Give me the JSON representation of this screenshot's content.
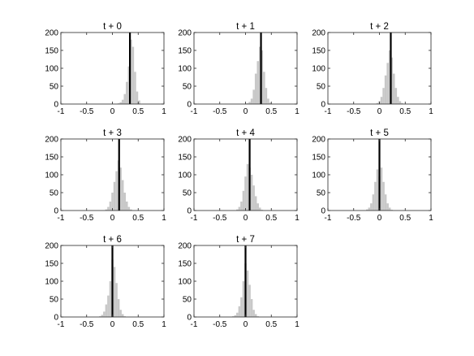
{
  "chart_data": [
    {
      "type": "bar",
      "title": "t + 0",
      "xlim": [
        -1,
        1
      ],
      "ylim": [
        0,
        200
      ],
      "x_ticks": [
        "-1",
        "-0.5",
        "0",
        "0.5",
        "1"
      ],
      "y_ticks": [
        "0",
        "50",
        "100",
        "150",
        "200"
      ],
      "bin_width": 0.04,
      "bin_centers": [
        0.12,
        0.16,
        0.2,
        0.24,
        0.28,
        0.32,
        0.36,
        0.4,
        0.44,
        0.48,
        0.52
      ],
      "counts": [
        2,
        5,
        12,
        28,
        62,
        105,
        180,
        160,
        90,
        35,
        10
      ],
      "marker_x": 0.34,
      "bar_color": "#c8c8c8",
      "marker_color": "#000000"
    },
    {
      "type": "bar",
      "title": "t + 1",
      "xlim": [
        -1,
        1
      ],
      "ylim": [
        0,
        200
      ],
      "x_ticks": [
        "-1",
        "-0.5",
        "0",
        "0.5",
        "1"
      ],
      "y_ticks": [
        "0",
        "50",
        "100",
        "150",
        "200"
      ],
      "bin_width": 0.04,
      "bin_centers": [
        0.04,
        0.08,
        0.12,
        0.16,
        0.2,
        0.24,
        0.28,
        0.32,
        0.36,
        0.4,
        0.44,
        0.48
      ],
      "counts": [
        2,
        6,
        15,
        40,
        85,
        120,
        160,
        150,
        90,
        45,
        15,
        4
      ],
      "marker_x": 0.3,
      "bar_color": "#c8c8c8",
      "marker_color": "#000000"
    },
    {
      "type": "bar",
      "title": "t + 2",
      "xlim": [
        -1,
        1
      ],
      "ylim": [
        0,
        200
      ],
      "x_ticks": [
        "-1",
        "-0.5",
        "0",
        "0.5",
        "1"
      ],
      "y_ticks": [
        "0",
        "50",
        "100",
        "150",
        "200"
      ],
      "bin_width": 0.04,
      "bin_centers": [
        -0.04,
        0.0,
        0.04,
        0.08,
        0.12,
        0.16,
        0.2,
        0.24,
        0.28,
        0.32,
        0.36,
        0.4,
        0.44
      ],
      "counts": [
        3,
        8,
        20,
        45,
        80,
        115,
        150,
        130,
        85,
        45,
        20,
        8,
        3
      ],
      "marker_x": 0.22,
      "bar_color": "#c8c8c8",
      "marker_color": "#000000"
    },
    {
      "type": "bar",
      "title": "t + 3",
      "xlim": [
        -1,
        1
      ],
      "ylim": [
        0,
        200
      ],
      "x_ticks": [
        "-1",
        "-0.5",
        "0",
        "0.5",
        "1"
      ],
      "y_ticks": [
        "0",
        "50",
        "100",
        "150",
        "200"
      ],
      "bin_width": 0.04,
      "bin_centers": [
        -0.12,
        -0.08,
        -0.04,
        0.0,
        0.04,
        0.08,
        0.12,
        0.16,
        0.2,
        0.24,
        0.28,
        0.32,
        0.36
      ],
      "counts": [
        3,
        10,
        25,
        50,
        80,
        110,
        140,
        120,
        85,
        50,
        25,
        10,
        3
      ],
      "marker_x": 0.13,
      "bar_color": "#c8c8c8",
      "marker_color": "#000000"
    },
    {
      "type": "bar",
      "title": "t + 4",
      "xlim": [
        -1,
        1
      ],
      "ylim": [
        0,
        200
      ],
      "x_ticks": [
        "-1",
        "-0.5",
        "0",
        "0.5",
        "1"
      ],
      "y_ticks": [
        "0",
        "50",
        "100",
        "150",
        "200"
      ],
      "bin_width": 0.04,
      "bin_centers": [
        -0.16,
        -0.12,
        -0.08,
        -0.04,
        0.0,
        0.04,
        0.08,
        0.12,
        0.16,
        0.2,
        0.24,
        0.28,
        0.32
      ],
      "counts": [
        3,
        10,
        25,
        55,
        95,
        130,
        120,
        100,
        70,
        40,
        20,
        8,
        2
      ],
      "marker_x": 0.08,
      "bar_color": "#c8c8c8",
      "marker_color": "#000000"
    },
    {
      "type": "bar",
      "title": "t + 5",
      "xlim": [
        -1,
        1
      ],
      "ylim": [
        0,
        200
      ],
      "x_ticks": [
        "-1",
        "-0.5",
        "0",
        "0.5",
        "1"
      ],
      "y_ticks": [
        "0",
        "50",
        "100",
        "150",
        "200"
      ],
      "bin_width": 0.04,
      "bin_centers": [
        -0.24,
        -0.2,
        -0.16,
        -0.12,
        -0.08,
        -0.04,
        0.0,
        0.04,
        0.08,
        0.12,
        0.16,
        0.2,
        0.24
      ],
      "counts": [
        3,
        8,
        20,
        45,
        80,
        115,
        95,
        120,
        80,
        45,
        20,
        8,
        2
      ],
      "marker_x": 0.0,
      "bar_color": "#c8c8c8",
      "marker_color": "#000000"
    },
    {
      "type": "bar",
      "title": "t + 6",
      "xlim": [
        -1,
        1
      ],
      "ylim": [
        0,
        200
      ],
      "x_ticks": [
        "-1",
        "-0.5",
        "0",
        "0.5",
        "1"
      ],
      "y_ticks": [
        "0",
        "50",
        "100",
        "150",
        "200"
      ],
      "bin_width": 0.04,
      "bin_centers": [
        -0.24,
        -0.2,
        -0.16,
        -0.12,
        -0.08,
        -0.04,
        0.0,
        0.04,
        0.08,
        0.12,
        0.16,
        0.2,
        0.24
      ],
      "counts": [
        2,
        6,
        15,
        35,
        60,
        100,
        160,
        140,
        95,
        50,
        20,
        8,
        2
      ],
      "marker_x": 0.0,
      "bar_color": "#c8c8c8",
      "marker_color": "#000000"
    },
    {
      "type": "bar",
      "title": "t + 7",
      "xlim": [
        -1,
        1
      ],
      "ylim": [
        0,
        200
      ],
      "x_ticks": [
        "-1",
        "-0.5",
        "0",
        "0.5",
        "1"
      ],
      "y_ticks": [
        "0",
        "50",
        "100",
        "150",
        "200"
      ],
      "bin_width": 0.04,
      "bin_centers": [
        -0.24,
        -0.2,
        -0.16,
        -0.12,
        -0.08,
        -0.04,
        0.0,
        0.04,
        0.08,
        0.12,
        0.16,
        0.2,
        0.24
      ],
      "counts": [
        2,
        5,
        12,
        30,
        55,
        100,
        150,
        130,
        90,
        50,
        20,
        8,
        2
      ],
      "marker_x": 0.0,
      "bar_color": "#c8c8c8",
      "marker_color": "#000000"
    }
  ]
}
